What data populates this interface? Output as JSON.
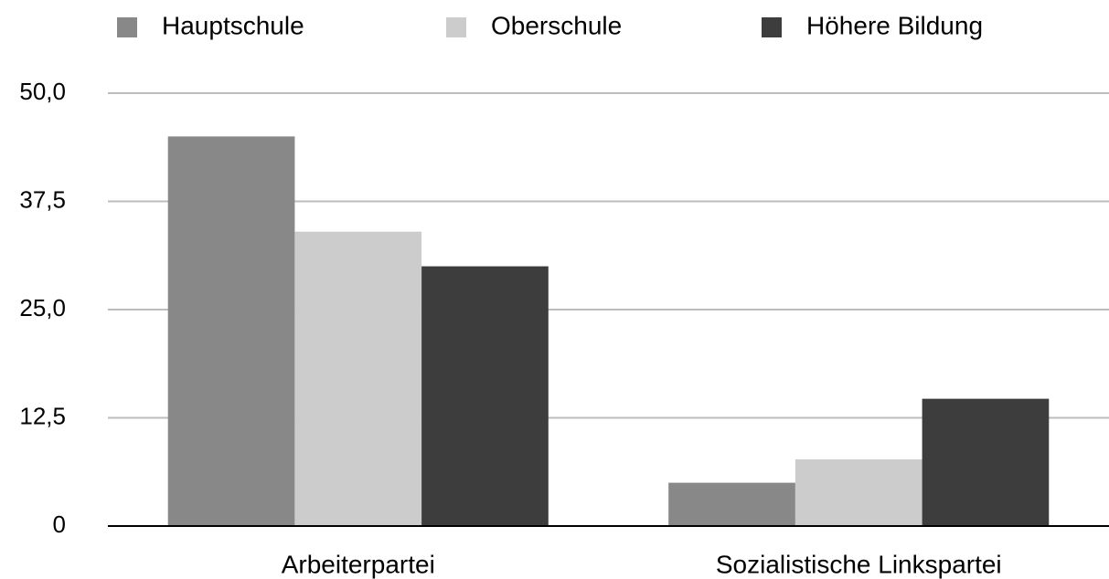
{
  "chart_data": {
    "type": "bar",
    "categories": [
      "Arbeiterpartei",
      "Sozialistische Linkspartei"
    ],
    "series": [
      {
        "name": "Hauptschule",
        "color": "#878887",
        "values": [
          45,
          5
        ]
      },
      {
        "name": "Oberschule",
        "color": "#cbcccb",
        "values": [
          34,
          7.7
        ]
      },
      {
        "name": "Höhere Bildung",
        "color": "#3c3d3c",
        "values": [
          30,
          14.7
        ]
      }
    ],
    "ylim": [
      0,
      50
    ],
    "yticks": [
      0,
      {
        "value": 12.5,
        "label": "12,5"
      },
      {
        "value": 25,
        "label": "25,0"
      },
      {
        "value": 37.5,
        "label": "37,5"
      },
      {
        "value": 50,
        "label": "50,0"
      }
    ],
    "grid": true,
    "legend": "top"
  }
}
